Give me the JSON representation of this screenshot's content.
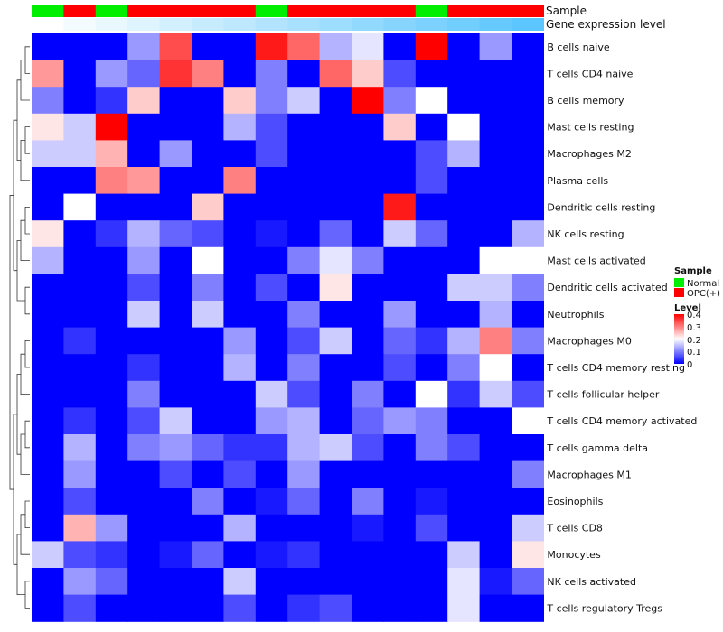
{
  "chart_data": {
    "type": "heatmap",
    "title": "",
    "row_labels": [
      "B cells naive",
      "T cells CD4 naive",
      "B cells memory",
      "Mast cells resting",
      "Macrophages M2",
      "Plasma cells",
      "Dendritic cells resting",
      "NK cells resting",
      "Mast cells activated",
      "Dendritic cells activated",
      "Neutrophils",
      "Macrophages M0",
      "T cells CD4 memory resting",
      "T cells follicular helper",
      "T cells CD4 memory activated",
      "T cells gamma delta",
      "Macrophages M1",
      "Eosinophils",
      "T cells CD8",
      "Monocytes",
      "NK cells activated",
      "T cells regulatory  Tregs"
    ],
    "columns": 16,
    "sample_groups": [
      "Normal",
      "OPC(+)",
      "Normal",
      "OPC(+)",
      "OPC(+)",
      "OPC(+)",
      "OPC(+)",
      "Normal",
      "OPC(+)",
      "OPC(+)",
      "OPC(+)",
      "OPC(+)",
      "Normal",
      "OPC(+)",
      "OPC(+)",
      "OPC(+)"
    ],
    "gene_expression_level": [
      0.0,
      0.04,
      0.08,
      0.12,
      0.16,
      0.2,
      0.24,
      0.28,
      0.32,
      0.36,
      0.4,
      0.44,
      0.48,
      0.52,
      0.56,
      0.6
    ],
    "values": [
      [
        0.0,
        0.0,
        0.0,
        0.12,
        0.34,
        0.0,
        0.0,
        0.38,
        0.32,
        0.14,
        0.18,
        0.0,
        0.4,
        0.0,
        0.12,
        0.0
      ],
      [
        0.28,
        0.0,
        0.12,
        0.08,
        0.36,
        0.3,
        0.0,
        0.1,
        0.0,
        0.32,
        0.24,
        0.06,
        0.0,
        0.0,
        0.0,
        0.0
      ],
      [
        0.1,
        0.0,
        0.04,
        0.24,
        0.0,
        0.0,
        0.24,
        0.1,
        0.16,
        0.0,
        0.4,
        0.1,
        0.2,
        0.0,
        0.0,
        0.0
      ],
      [
        0.22,
        0.16,
        0.4,
        0.0,
        0.0,
        0.0,
        0.14,
        0.06,
        0.0,
        0.0,
        0.0,
        0.24,
        0.0,
        0.2,
        0.0,
        0.0
      ],
      [
        0.16,
        0.16,
        0.26,
        0.0,
        0.12,
        0.0,
        0.0,
        0.06,
        0.0,
        0.0,
        0.0,
        0.0,
        0.06,
        0.14,
        0.0,
        0.0
      ],
      [
        0.0,
        0.0,
        0.3,
        0.28,
        0.0,
        0.0,
        0.3,
        0.0,
        0.0,
        0.0,
        0.0,
        0.0,
        0.06,
        0.0,
        0.0,
        0.0
      ],
      [
        0.0,
        0.2,
        0.0,
        0.0,
        0.0,
        0.24,
        0.0,
        0.0,
        0.0,
        0.0,
        0.0,
        0.38,
        0.0,
        0.0,
        0.0,
        0.0
      ],
      [
        0.22,
        0.0,
        0.04,
        0.14,
        0.08,
        0.06,
        0.0,
        0.02,
        0.0,
        0.08,
        0.0,
        0.16,
        0.08,
        0.0,
        0.0,
        0.14
      ],
      [
        0.14,
        0.0,
        0.0,
        0.12,
        0.0,
        0.2,
        0.0,
        0.0,
        0.1,
        0.18,
        0.1,
        0.0,
        0.0,
        0.0,
        0.2,
        0.2
      ],
      [
        0.0,
        0.0,
        0.0,
        0.06,
        0.0,
        0.1,
        0.0,
        0.06,
        0.0,
        0.22,
        0.0,
        0.0,
        0.0,
        0.16,
        0.16,
        0.1
      ],
      [
        0.0,
        0.0,
        0.0,
        0.16,
        0.0,
        0.16,
        0.0,
        0.0,
        0.1,
        0.0,
        0.0,
        0.12,
        0.0,
        0.0,
        0.14,
        0.0
      ],
      [
        0.0,
        0.04,
        0.0,
        0.0,
        0.0,
        0.0,
        0.12,
        0.0,
        0.06,
        0.16,
        0.0,
        0.08,
        0.04,
        0.14,
        0.3,
        0.1
      ],
      [
        0.0,
        0.0,
        0.0,
        0.04,
        0.0,
        0.0,
        0.14,
        0.0,
        0.1,
        0.0,
        0.0,
        0.06,
        0.0,
        0.1,
        0.2,
        0.0
      ],
      [
        0.0,
        0.0,
        0.0,
        0.1,
        0.0,
        0.0,
        0.0,
        0.16,
        0.06,
        0.0,
        0.1,
        0.0,
        0.2,
        0.04,
        0.16,
        0.06
      ],
      [
        0.0,
        0.04,
        0.0,
        0.06,
        0.16,
        0.0,
        0.0,
        0.12,
        0.14,
        0.0,
        0.08,
        0.12,
        0.1,
        0.0,
        0.0,
        0.2
      ],
      [
        0.0,
        0.14,
        0.0,
        0.1,
        0.12,
        0.08,
        0.04,
        0.04,
        0.14,
        0.16,
        0.06,
        0.0,
        0.1,
        0.06,
        0.0,
        0.0
      ],
      [
        0.0,
        0.12,
        0.0,
        0.0,
        0.06,
        0.0,
        0.06,
        0.0,
        0.12,
        0.0,
        0.0,
        0.0,
        0.0,
        0.0,
        0.0,
        0.1
      ],
      [
        0.0,
        0.06,
        0.0,
        0.0,
        0.0,
        0.1,
        0.0,
        0.02,
        0.08,
        0.0,
        0.1,
        0.0,
        0.02,
        0.0,
        0.0,
        0.0
      ],
      [
        0.0,
        0.26,
        0.12,
        0.0,
        0.0,
        0.0,
        0.14,
        0.0,
        0.0,
        0.0,
        0.02,
        0.0,
        0.06,
        0.0,
        0.0,
        0.16
      ],
      [
        0.16,
        0.06,
        0.04,
        0.0,
        0.02,
        0.08,
        0.0,
        0.02,
        0.04,
        0.0,
        0.0,
        0.0,
        0.0,
        0.16,
        0.0,
        0.22
      ],
      [
        0.0,
        0.12,
        0.08,
        0.0,
        0.0,
        0.0,
        0.16,
        0.0,
        0.0,
        0.0,
        0.0,
        0.0,
        0.0,
        0.18,
        0.02,
        0.08
      ],
      [
        0.0,
        0.06,
        0.0,
        0.0,
        0.0,
        0.0,
        0.06,
        0.0,
        0.04,
        0.06,
        0.0,
        0.0,
        0.0,
        0.18,
        0.0,
        0.0
      ]
    ],
    "color_scale": {
      "min": 0,
      "max": 0.4,
      "low": "#0000ff",
      "mid": "#ffffff",
      "high": "#ff0000"
    }
  },
  "annotation_rows": {
    "sample_label": "Sample",
    "expression_label": "Gene expression level"
  },
  "legend": {
    "sample_title": "Sample",
    "sample_items": [
      {
        "label": "Normal",
        "color": "#00ee00"
      },
      {
        "label": "OPC(+)",
        "color": "#ff0000"
      }
    ],
    "level_title": "Level",
    "level_ticks": [
      "0.4",
      "0.3",
      "0.2",
      "0.1",
      "0"
    ]
  },
  "colors": {
    "normal": "#00ee00",
    "opc": "#ff0000",
    "expr_low": "#ffffff",
    "expr_high": "#5bc6ff"
  }
}
